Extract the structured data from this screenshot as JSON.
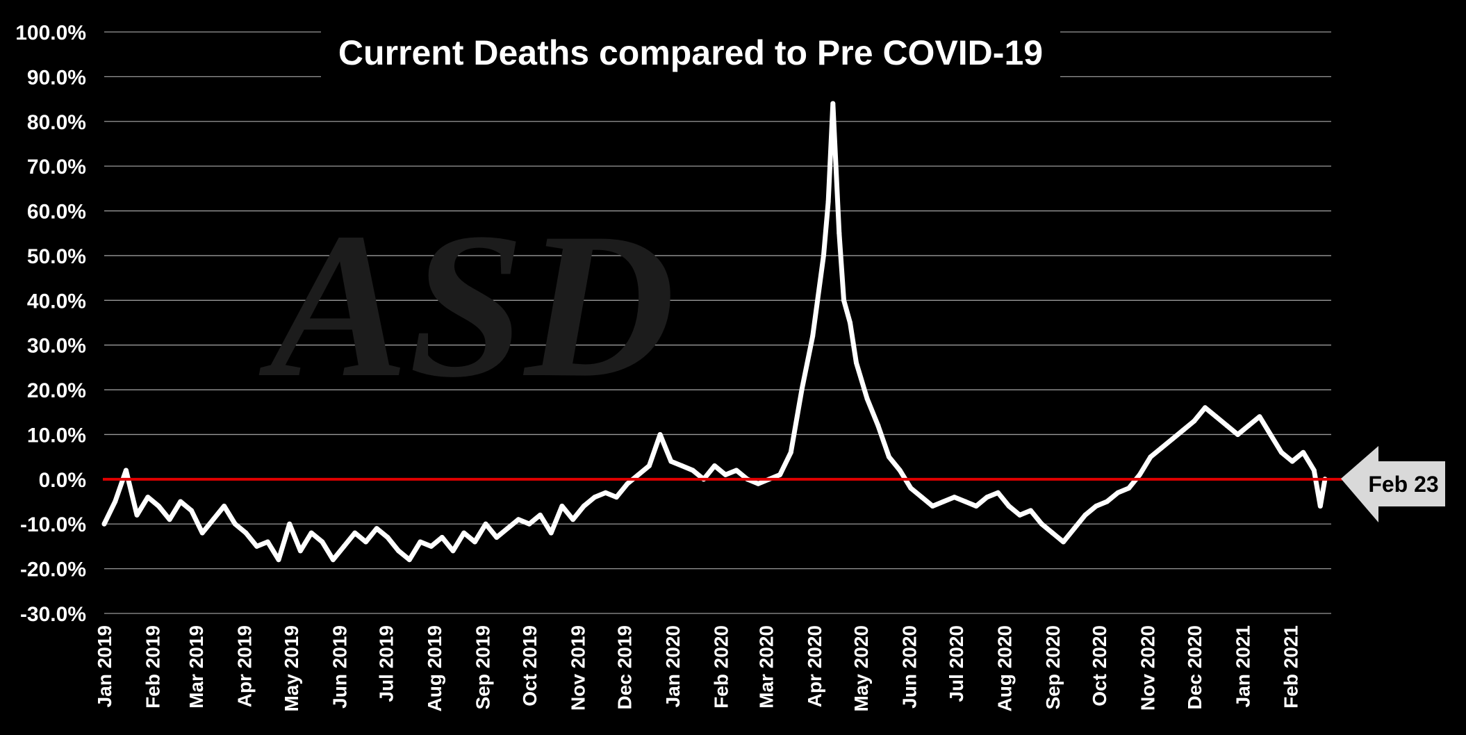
{
  "chart_data": {
    "type": "line",
    "title": "Current Deaths compared to Pre COVID-19",
    "watermark": "ASD",
    "xlabel": "",
    "ylabel": "",
    "ylim": [
      -30,
      100
    ],
    "grid": true,
    "y_ticks": [
      "100.0%",
      "90.0%",
      "80.0%",
      "70.0%",
      "60.0%",
      "50.0%",
      "40.0%",
      "30.0%",
      "20.0%",
      "10.0%",
      "0.0%",
      "-10.0%",
      "-20.0%",
      "-30.0%"
    ],
    "y_tick_values": [
      100,
      90,
      80,
      70,
      60,
      50,
      40,
      30,
      20,
      10,
      0,
      -10,
      -20,
      -30
    ],
    "x_ticks": [
      "Jan 2019",
      "Feb 2019",
      "Mar 2019",
      "Apr 2019",
      "May 2019",
      "Jun 2019",
      "Jul 2019",
      "Aug 2019",
      "Sep 2019",
      "Oct 2019",
      "Nov 2019",
      "Dec 2019",
      "Jan 2020",
      "Feb 2020",
      "Mar 2020",
      "Apr 2020",
      "May 2020",
      "Jun 2020",
      "Jul 2020",
      "Aug 2020",
      "Sep 2020",
      "Oct 2020",
      "Nov 2020",
      "Dec 2020",
      "Jan 2021",
      "Feb 2021"
    ],
    "x_tick_dates": [
      "2019-01-01",
      "2019-02-01",
      "2019-03-01",
      "2019-04-01",
      "2019-05-01",
      "2019-06-01",
      "2019-07-01",
      "2019-08-01",
      "2019-09-01",
      "2019-10-01",
      "2019-11-01",
      "2019-12-01",
      "2020-01-01",
      "2020-02-01",
      "2020-03-01",
      "2020-04-01",
      "2020-05-01",
      "2020-06-01",
      "2020-07-01",
      "2020-08-01",
      "2020-09-01",
      "2020-10-01",
      "2020-11-01",
      "2020-12-01",
      "2021-01-01",
      "2021-02-01"
    ],
    "x_range": [
      "2019-01-01",
      "2021-02-27"
    ],
    "reference_line": {
      "y": 0,
      "color": "#e00000"
    },
    "marker": {
      "label": "Feb 23"
    },
    "series": [
      {
        "color": "#ffffff",
        "points": [
          [
            "2019-01-01",
            -10
          ],
          [
            "2019-01-08",
            -5
          ],
          [
            "2019-01-15",
            2
          ],
          [
            "2019-01-22",
            -8
          ],
          [
            "2019-01-29",
            -4
          ],
          [
            "2019-02-05",
            -6
          ],
          [
            "2019-02-12",
            -9
          ],
          [
            "2019-02-19",
            -5
          ],
          [
            "2019-02-26",
            -7
          ],
          [
            "2019-03-05",
            -12
          ],
          [
            "2019-03-12",
            -9
          ],
          [
            "2019-03-19",
            -6
          ],
          [
            "2019-03-26",
            -10
          ],
          [
            "2019-04-02",
            -12
          ],
          [
            "2019-04-09",
            -15
          ],
          [
            "2019-04-16",
            -14
          ],
          [
            "2019-04-23",
            -18
          ],
          [
            "2019-04-30",
            -10
          ],
          [
            "2019-05-07",
            -16
          ],
          [
            "2019-05-14",
            -12
          ],
          [
            "2019-05-21",
            -14
          ],
          [
            "2019-05-28",
            -18
          ],
          [
            "2019-06-04",
            -15
          ],
          [
            "2019-06-11",
            -12
          ],
          [
            "2019-06-18",
            -14
          ],
          [
            "2019-06-25",
            -11
          ],
          [
            "2019-07-02",
            -13
          ],
          [
            "2019-07-09",
            -16
          ],
          [
            "2019-07-16",
            -18
          ],
          [
            "2019-07-23",
            -14
          ],
          [
            "2019-07-30",
            -15
          ],
          [
            "2019-08-06",
            -13
          ],
          [
            "2019-08-13",
            -16
          ],
          [
            "2019-08-20",
            -12
          ],
          [
            "2019-08-27",
            -14
          ],
          [
            "2019-09-03",
            -10
          ],
          [
            "2019-09-10",
            -13
          ],
          [
            "2019-09-17",
            -11
          ],
          [
            "2019-09-24",
            -9
          ],
          [
            "2019-10-01",
            -10
          ],
          [
            "2019-10-08",
            -8
          ],
          [
            "2019-10-15",
            -12
          ],
          [
            "2019-10-22",
            -6
          ],
          [
            "2019-10-29",
            -9
          ],
          [
            "2019-11-05",
            -6
          ],
          [
            "2019-11-12",
            -4
          ],
          [
            "2019-11-19",
            -3
          ],
          [
            "2019-11-26",
            -4
          ],
          [
            "2019-12-03",
            -1
          ],
          [
            "2019-12-10",
            1
          ],
          [
            "2019-12-17",
            3
          ],
          [
            "2019-12-24",
            10
          ],
          [
            "2019-12-31",
            4
          ],
          [
            "2020-01-07",
            3
          ],
          [
            "2020-01-14",
            2
          ],
          [
            "2020-01-21",
            0
          ],
          [
            "2020-01-28",
            3
          ],
          [
            "2020-02-04",
            1
          ],
          [
            "2020-02-11",
            2
          ],
          [
            "2020-02-18",
            0
          ],
          [
            "2020-02-25",
            -1
          ],
          [
            "2020-03-03",
            0
          ],
          [
            "2020-03-10",
            1
          ],
          [
            "2020-03-17",
            6
          ],
          [
            "2020-03-24",
            20
          ],
          [
            "2020-03-31",
            32
          ],
          [
            "2020-04-07",
            50
          ],
          [
            "2020-04-10",
            62
          ],
          [
            "2020-04-13",
            84
          ],
          [
            "2020-04-17",
            55
          ],
          [
            "2020-04-20",
            40
          ],
          [
            "2020-04-24",
            35
          ],
          [
            "2020-04-28",
            26
          ],
          [
            "2020-05-05",
            18
          ],
          [
            "2020-05-12",
            12
          ],
          [
            "2020-05-19",
            5
          ],
          [
            "2020-05-26",
            2
          ],
          [
            "2020-06-02",
            -2
          ],
          [
            "2020-06-09",
            -4
          ],
          [
            "2020-06-16",
            -6
          ],
          [
            "2020-06-23",
            -5
          ],
          [
            "2020-06-30",
            -4
          ],
          [
            "2020-07-07",
            -5
          ],
          [
            "2020-07-14",
            -6
          ],
          [
            "2020-07-21",
            -4
          ],
          [
            "2020-07-28",
            -3
          ],
          [
            "2020-08-04",
            -6
          ],
          [
            "2020-08-11",
            -8
          ],
          [
            "2020-08-18",
            -7
          ],
          [
            "2020-08-25",
            -10
          ],
          [
            "2020-09-01",
            -12
          ],
          [
            "2020-09-08",
            -14
          ],
          [
            "2020-09-15",
            -11
          ],
          [
            "2020-09-22",
            -8
          ],
          [
            "2020-09-29",
            -6
          ],
          [
            "2020-10-06",
            -5
          ],
          [
            "2020-10-13",
            -3
          ],
          [
            "2020-10-20",
            -2
          ],
          [
            "2020-10-27",
            1
          ],
          [
            "2020-11-03",
            5
          ],
          [
            "2020-11-10",
            7
          ],
          [
            "2020-11-17",
            9
          ],
          [
            "2020-11-24",
            11
          ],
          [
            "2020-12-01",
            13
          ],
          [
            "2020-12-08",
            16
          ],
          [
            "2020-12-15",
            14
          ],
          [
            "2020-12-22",
            12
          ],
          [
            "2020-12-29",
            10
          ],
          [
            "2021-01-05",
            12
          ],
          [
            "2021-01-12",
            14
          ],
          [
            "2021-01-19",
            10
          ],
          [
            "2021-01-26",
            6
          ],
          [
            "2021-02-02",
            4
          ],
          [
            "2021-02-09",
            6
          ],
          [
            "2021-02-16",
            2
          ],
          [
            "2021-02-20",
            -6
          ],
          [
            "2021-02-23",
            0
          ]
        ]
      }
    ]
  }
}
